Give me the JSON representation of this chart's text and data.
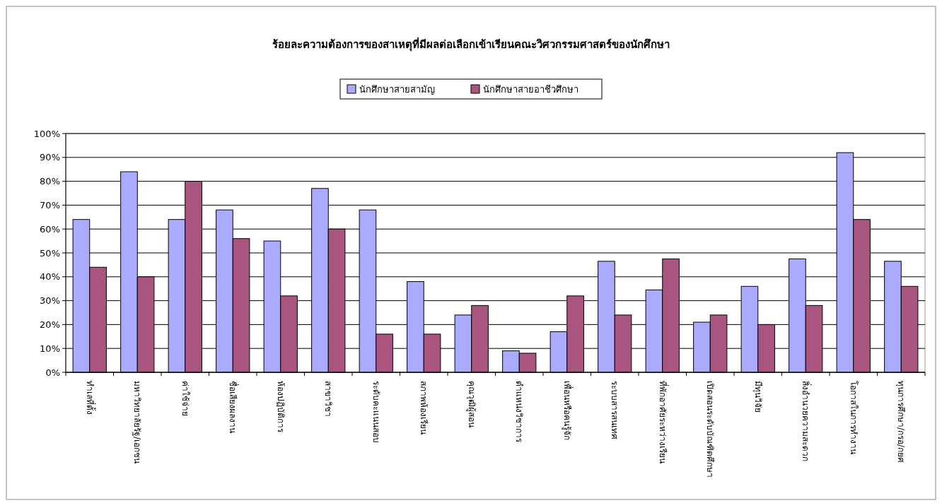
{
  "chart_data": {
    "type": "bar",
    "title": "ร้อยละความต้องการของสาเหตุที่มีผลต่อเลือกเข้าเรียนคณะวิศวกรรมศาสตร์ของนักศึกษา",
    "categories": [
      "ทำเลที่ตั้ง",
      "มหาวิทยาลัยรัฐ/เอกชน",
      "ค่าใช้จ่าย",
      "ชื่อเสียงผลงาน",
      "ห้องปฏิบัติการ",
      "สาขาวิชา",
      "ระดับคะแนนสอบ",
      "สภาพห้องเรียน",
      "คุณวุฒิผู้สอน",
      "ตำแหน่งวิชาการ",
      "เพื่อนหรือคนรู้จัก",
      "ระบบสารสนเทศ",
      "ที่พักอาศัยระหว่างเรียน",
      "เปิดสอนระดับบัณฑิตศึกษา",
      "มีทุนวิจัย",
      "สิ่งอำนวยความสะดวก",
      "โอกาสในการทำงาน",
      "ทุนการศึกษา/กรอ/กยศ"
    ],
    "series": [
      {
        "name": "นักศึกษาสายสามัญ",
        "color": "#aaaaff",
        "values": [
          64,
          84,
          64,
          68,
          55,
          77,
          68,
          38,
          24,
          9,
          17,
          46.5,
          34.5,
          21,
          36,
          47.5,
          92,
          46.5
        ]
      },
      {
        "name": "นักศึกษาสายอาชีวศึกษา",
        "color": "#aa5580",
        "values": [
          44,
          40,
          80,
          56,
          32,
          60,
          16,
          16,
          28,
          8,
          32,
          24,
          47.5,
          24,
          20,
          28,
          64,
          36
        ]
      }
    ],
    "ylim": [
      0,
      100
    ],
    "yticks": [
      {
        "value": 0,
        "label": "0%"
      },
      {
        "value": 10,
        "label": "10%"
      },
      {
        "value": 20,
        "label": "20%"
      },
      {
        "value": 30,
        "label": "30%"
      },
      {
        "value": 40,
        "label": "40%"
      },
      {
        "value": 50,
        "label": "50%"
      },
      {
        "value": 60,
        "label": "60%"
      },
      {
        "value": 70,
        "label": "70%"
      },
      {
        "value": 80,
        "label": "80%"
      },
      {
        "value": 90,
        "label": "90%"
      },
      {
        "value": 100,
        "label": "100%"
      }
    ],
    "grid": "y",
    "legend": "top"
  }
}
